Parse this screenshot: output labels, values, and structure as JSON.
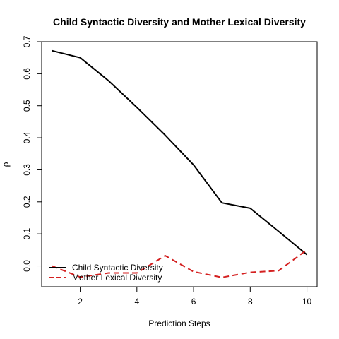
{
  "chart_data": {
    "type": "line",
    "title": "Child Syntactic Diversity and Mother Lexical Diversity",
    "xlabel": "Prediction Steps",
    "ylabel": "ρ",
    "xlim": [
      0.64,
      10.36
    ],
    "ylim": [
      -0.065,
      0.7
    ],
    "x_ticks": [
      2,
      4,
      6,
      8,
      10
    ],
    "x_tick_labels": [
      "2",
      "4",
      "6",
      "8",
      "10"
    ],
    "y_ticks": [
      0.0,
      0.1,
      0.2,
      0.3,
      0.4,
      0.5,
      0.6,
      0.7
    ],
    "y_tick_labels": [
      "0.0",
      "0.1",
      "0.2",
      "0.3",
      "0.4",
      "0.5",
      "0.6",
      "0.7"
    ],
    "grid": false,
    "legend_position": "bottom-left",
    "x": [
      1,
      2,
      3,
      4,
      5,
      6,
      7,
      8,
      9,
      10
    ],
    "series": [
      {
        "name": "Child Syntactic Diversity",
        "color": "#000000",
        "dash": "solid",
        "values": [
          0.672,
          0.65,
          0.578,
          0.495,
          0.408,
          0.315,
          0.197,
          0.18,
          0.108,
          0.035
        ]
      },
      {
        "name": "Mother Lexical Diversity",
        "color": "#d42020",
        "dash": "dashed",
        "values": [
          0.0,
          -0.035,
          -0.022,
          -0.022,
          0.032,
          -0.018,
          -0.036,
          -0.02,
          -0.015,
          0.05
        ]
      }
    ]
  }
}
